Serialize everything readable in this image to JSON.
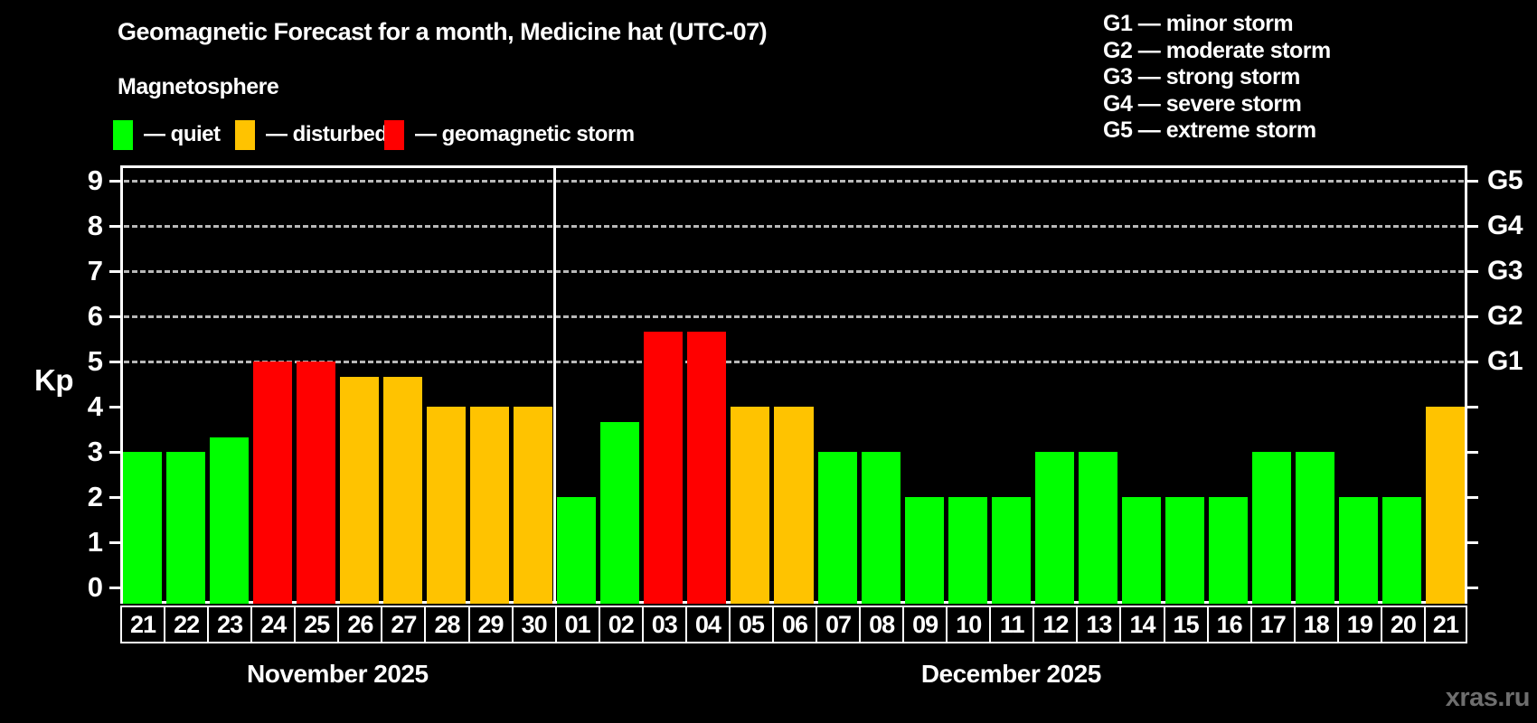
{
  "title": "Geomagnetic Forecast for a month, Medicine hat (UTC-07)",
  "subtitle": "Magnetosphere",
  "condition_legend": [
    {
      "state": "quiet",
      "label": "— quiet",
      "color": "#00ff00"
    },
    {
      "state": "disturbed",
      "label": "— disturbed",
      "color": "#ffc300"
    },
    {
      "state": "storm",
      "label": "— geomagnetic storm",
      "color": "#ff0000"
    }
  ],
  "storm_scale_legend": [
    "G1 — minor storm",
    "G2 — moderate storm",
    "G3 — strong storm",
    "G4 — severe storm",
    "G5 — extreme storm"
  ],
  "watermark": "xras.ru",
  "chart_data": {
    "type": "bar",
    "ylabel": "Kp",
    "ylim": [
      0,
      9
    ],
    "yticks": [
      0,
      1,
      2,
      3,
      4,
      5,
      6,
      7,
      8,
      9
    ],
    "gridlines_at_kp": [
      5,
      6,
      7,
      8,
      9
    ],
    "grid_style": "dashed",
    "right_axis_labels": [
      {
        "kp": 5,
        "label": "G1"
      },
      {
        "kp": 6,
        "label": "G2"
      },
      {
        "kp": 7,
        "label": "G3"
      },
      {
        "kp": 8,
        "label": "G4"
      },
      {
        "kp": 9,
        "label": "G5"
      }
    ],
    "months": [
      {
        "label": "November 2025",
        "days": 10
      },
      {
        "label": "December 2025",
        "days": 21
      }
    ],
    "categories": [
      "21",
      "22",
      "23",
      "24",
      "25",
      "26",
      "27",
      "28",
      "29",
      "30",
      "01",
      "02",
      "03",
      "04",
      "05",
      "06",
      "07",
      "08",
      "09",
      "10",
      "11",
      "12",
      "13",
      "14",
      "15",
      "16",
      "17",
      "18",
      "19",
      "20",
      "21"
    ],
    "values": [
      3,
      3,
      3.33,
      5,
      5,
      4.67,
      4.67,
      4,
      4,
      4,
      2,
      3.67,
      5.67,
      5.67,
      4,
      4,
      3,
      3,
      2,
      2,
      2,
      3,
      3,
      2,
      2,
      2,
      3,
      3,
      2,
      2,
      4
    ],
    "states": [
      "quiet",
      "quiet",
      "quiet",
      "storm",
      "storm",
      "disturbed",
      "disturbed",
      "disturbed",
      "disturbed",
      "disturbed",
      "quiet",
      "quiet",
      "storm",
      "storm",
      "disturbed",
      "disturbed",
      "quiet",
      "quiet",
      "quiet",
      "quiet",
      "quiet",
      "quiet",
      "quiet",
      "quiet",
      "quiet",
      "quiet",
      "quiet",
      "quiet",
      "quiet",
      "quiet",
      "disturbed"
    ]
  }
}
